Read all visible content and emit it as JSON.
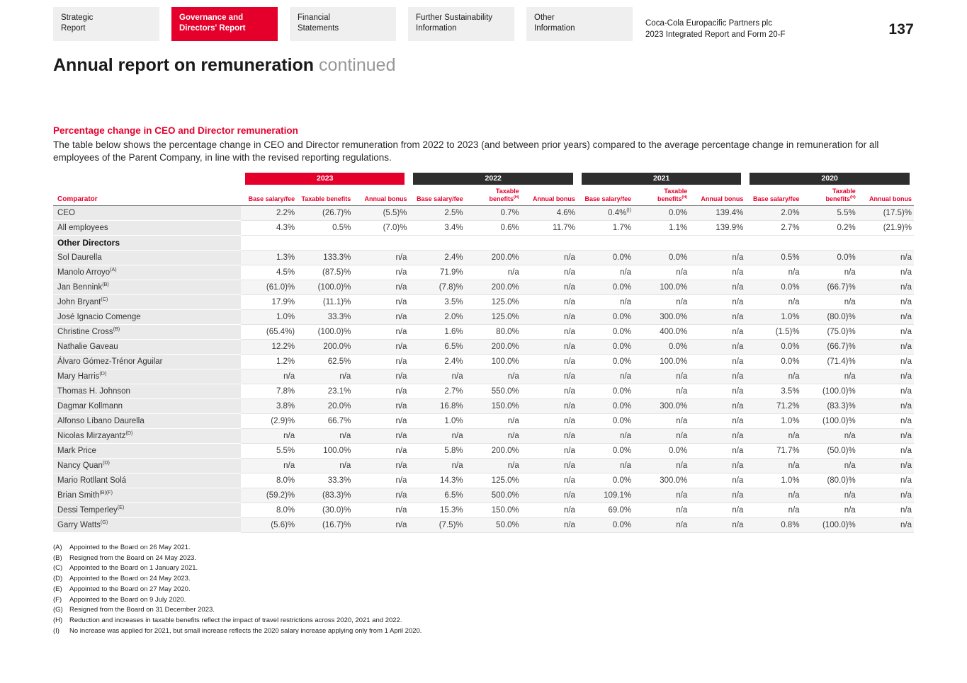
{
  "nav_tabs": [
    {
      "label": "Strategic\nReport",
      "active": false
    },
    {
      "label": "Governance and\nDirectors' Report",
      "active": true
    },
    {
      "label": "Financial\nStatements",
      "active": false
    },
    {
      "label": "Further Sustainability\nInformation",
      "active": false
    },
    {
      "label": "Other\nInformation",
      "active": false
    }
  ],
  "header": {
    "brand_line1": "Coca-Cola Europacific Partners plc",
    "brand_line2": "2023 Integrated Report and Form 20-F",
    "page_number": "137"
  },
  "title": {
    "main": "Annual report on remuneration",
    "suffix": "continued"
  },
  "section": {
    "heading": "Percentage change in CEO and Director remuneration",
    "intro": "The table below shows the percentage change in CEO and Director remuneration from 2022 to 2023 (and between prior years) compared to the average percentage change in remuneration for all employees of the Parent Company, in line with the revised reporting regulations."
  },
  "colors": {
    "accent_red": "#e4002b",
    "year_dark": "#2e2e2e"
  },
  "table": {
    "comparator_label": "Comparator",
    "year_groups": [
      {
        "year": "2023",
        "color": "#e4002b"
      },
      {
        "year": "2022",
        "color": "#2e2e2e"
      },
      {
        "year": "2021",
        "color": "#2e2e2e"
      },
      {
        "year": "2020",
        "color": "#2e2e2e"
      }
    ],
    "sub_headers": [
      "Base salary/fee",
      "Taxable benefits",
      "Annual bonus",
      "Base salary/fee",
      "Taxable benefits^(H)",
      "Annual bonus",
      "Base salary/fee",
      "Taxable benefits^(H)",
      "Annual bonus",
      "Base salary/fee",
      "Taxable benefits^(H)",
      "Annual bonus"
    ],
    "rows": [
      {
        "name": "CEO",
        "section": false,
        "values": [
          "2.2%",
          "(26.7)%",
          "(5.5)%",
          "2.5%",
          "0.7%",
          "4.6%",
          "0.4%^(I)",
          "0.0%",
          "139.4%",
          "2.0%",
          "5.5%",
          "(17.5)%"
        ]
      },
      {
        "name": "All employees",
        "section": false,
        "values": [
          "4.3%",
          "0.5%",
          "(7.0)%",
          "3.4%",
          "0.6%",
          "11.7%",
          "1.7%",
          "1.1%",
          "139.9%",
          "2.7%",
          "0.2%",
          "(21.9)%"
        ]
      },
      {
        "name": "Other Directors",
        "section": true,
        "values": [
          "",
          "",
          "",
          "",
          "",
          "",
          "",
          "",
          "",
          "",
          "",
          ""
        ]
      },
      {
        "name": "Sol Daurella",
        "section": false,
        "values": [
          "1.3%",
          "133.3%",
          "n/a",
          "2.4%",
          "200.0%",
          "n/a",
          "0.0%",
          "0.0%",
          "n/a",
          "0.5%",
          "0.0%",
          "n/a"
        ]
      },
      {
        "name": "Manolo Arroyo^(A)",
        "section": false,
        "values": [
          "4.5%",
          "(87.5)%",
          "n/a",
          "71.9%",
          "n/a",
          "n/a",
          "n/a",
          "n/a",
          "n/a",
          "n/a",
          "n/a",
          "n/a"
        ]
      },
      {
        "name": "Jan Bennink^(B)",
        "section": false,
        "values": [
          "(61.0)%",
          "(100.0)%",
          "n/a",
          "(7.8)%",
          "200.0%",
          "n/a",
          "0.0%",
          "100.0%",
          "n/a",
          "0.0%",
          "(66.7)%",
          "n/a"
        ]
      },
      {
        "name": "John Bryant^(C)",
        "section": false,
        "values": [
          "17.9%",
          "(11.1)%",
          "n/a",
          "3.5%",
          "125.0%",
          "n/a",
          "n/a",
          "n/a",
          "n/a",
          "n/a",
          "n/a",
          "n/a"
        ]
      },
      {
        "name": "José Ignacio Comenge",
        "section": false,
        "values": [
          "1.0%",
          "33.3%",
          "n/a",
          "2.0%",
          "125.0%",
          "n/a",
          "0.0%",
          "300.0%",
          "n/a",
          "1.0%",
          "(80.0)%",
          "n/a"
        ]
      },
      {
        "name": "Christine Cross^(B)",
        "section": false,
        "values": [
          "(65.4%)",
          "(100.0)%",
          "n/a",
          "1.6%",
          "80.0%",
          "n/a",
          "0.0%",
          "400.0%",
          "n/a",
          "(1.5)%",
          "(75.0)%",
          "n/a"
        ]
      },
      {
        "name": "Nathalie Gaveau",
        "section": false,
        "values": [
          "12.2%",
          "200.0%",
          "n/a",
          "6.5%",
          "200.0%",
          "n/a",
          "0.0%",
          "0.0%",
          "n/a",
          "0.0%",
          "(66.7)%",
          "n/a"
        ]
      },
      {
        "name": "Álvaro Gómez-Trénor Aguilar",
        "section": false,
        "values": [
          "1.2%",
          "62.5%",
          "n/a",
          "2.4%",
          "100.0%",
          "n/a",
          "0.0%",
          "100.0%",
          "n/a",
          "0.0%",
          "(71.4)%",
          "n/a"
        ]
      },
      {
        "name": "Mary Harris^(D)",
        "section": false,
        "values": [
          "n/a",
          "n/a",
          "n/a",
          "n/a",
          "n/a",
          "n/a",
          "n/a",
          "n/a",
          "n/a",
          "n/a",
          "n/a",
          "n/a"
        ]
      },
      {
        "name": "Thomas H. Johnson",
        "section": false,
        "values": [
          "7.8%",
          "23.1%",
          "n/a",
          "2.7%",
          "550.0%",
          "n/a",
          "0.0%",
          "n/a",
          "n/a",
          "3.5%",
          "(100.0)%",
          "n/a"
        ]
      },
      {
        "name": "Dagmar Kollmann",
        "section": false,
        "values": [
          "3.8%",
          "20.0%",
          "n/a",
          "16.8%",
          "150.0%",
          "n/a",
          "0.0%",
          "300.0%",
          "n/a",
          "71.2%",
          "(83.3)%",
          "n/a"
        ]
      },
      {
        "name": "Alfonso Líbano Daurella",
        "section": false,
        "values": [
          "(2.9)%",
          "66.7%",
          "n/a",
          "1.0%",
          "n/a",
          "n/a",
          "0.0%",
          "n/a",
          "n/a",
          "1.0%",
          "(100.0)%",
          "n/a"
        ]
      },
      {
        "name": "Nicolas Mirzayantz^(D)",
        "section": false,
        "values": [
          "n/a",
          "n/a",
          "n/a",
          "n/a",
          "n/a",
          "n/a",
          "n/a",
          "n/a",
          "n/a",
          "n/a",
          "n/a",
          "n/a"
        ]
      },
      {
        "name": "Mark Price",
        "section": false,
        "values": [
          "5.5%",
          "100.0%",
          "n/a",
          "5.8%",
          "200.0%",
          "n/a",
          "0.0%",
          "0.0%",
          "n/a",
          "71.7%",
          "(50.0)%",
          "n/a"
        ]
      },
      {
        "name": "Nancy Quan^(D)",
        "section": false,
        "values": [
          "n/a",
          "n/a",
          "n/a",
          "n/a",
          "n/a",
          "n/a",
          "n/a",
          "n/a",
          "n/a",
          "n/a",
          "n/a",
          "n/a"
        ]
      },
      {
        "name": "Mario Rotllant Solá",
        "section": false,
        "values": [
          "8.0%",
          "33.3%",
          "n/a",
          "14.3%",
          "125.0%",
          "n/a",
          "0.0%",
          "300.0%",
          "n/a",
          "1.0%",
          "(80.0)%",
          "n/a"
        ]
      },
      {
        "name": "Brian Smith^(B)(F)",
        "section": false,
        "values": [
          "(59.2)%",
          "(83.3)%",
          "n/a",
          "6.5%",
          "500.0%",
          "n/a",
          "109.1%",
          "n/a",
          "n/a",
          "n/a",
          "n/a",
          "n/a"
        ]
      },
      {
        "name": "Dessi Temperley^(E)",
        "section": false,
        "values": [
          "8.0%",
          "(30.0)%",
          "n/a",
          "15.3%",
          "150.0%",
          "n/a",
          "69.0%",
          "n/a",
          "n/a",
          "n/a",
          "n/a",
          "n/a"
        ]
      },
      {
        "name": "Garry Watts^(G)",
        "section": false,
        "values": [
          "(5.6)%",
          "(16.7)%",
          "n/a",
          "(7.5)%",
          "50.0%",
          "n/a",
          "0.0%",
          "n/a",
          "n/a",
          "0.8%",
          "(100.0)%",
          "n/a"
        ]
      }
    ]
  },
  "footnotes": [
    {
      "label": "(A)",
      "text": "Appointed to the Board on 26 May 2021."
    },
    {
      "label": "(B)",
      "text": "Resigned from the Board on 24 May 2023."
    },
    {
      "label": "(C)",
      "text": "Appointed to the Board on 1 January 2021."
    },
    {
      "label": "(D)",
      "text": "Appointed to the Board on 24 May 2023."
    },
    {
      "label": "(E)",
      "text": "Appointed to the Board on 27 May 2020."
    },
    {
      "label": "(F)",
      "text": "Appointed to the Board on 9 July 2020."
    },
    {
      "label": "(G)",
      "text": "Resigned from the Board on 31 December 2023."
    },
    {
      "label": "(H)",
      "text": "Reduction and increases in taxable benefits reflect the impact of travel restrictions across 2020, 2021 and 2022."
    },
    {
      "label": "(I)",
      "text": "No increase was applied for 2021, but small increase reflects the 2020 salary increase applying only from 1 April 2020."
    }
  ]
}
